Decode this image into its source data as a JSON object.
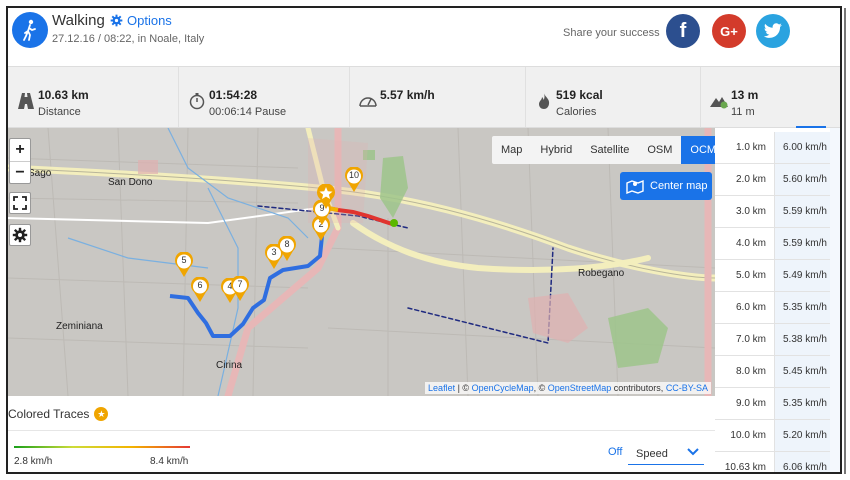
{
  "header": {
    "activity": "Walking",
    "options_label": "Options",
    "meta": "27.12.16 / 08:22, in Noale, Italy",
    "share_text": "Share your success",
    "social": {
      "facebook": "f",
      "googleplus": "G+",
      "twitter": "twitter"
    }
  },
  "stats": [
    {
      "icon": "road-icon",
      "main": "10.63 km",
      "sub": "Distance"
    },
    {
      "icon": "stopwatch-icon",
      "main": "01:54:28",
      "sub": "00:06:14 Pause"
    },
    {
      "icon": "speedometer-icon",
      "main": "5.57 km/h",
      "sub": ""
    },
    {
      "icon": "flame-icon",
      "main": "519 kcal",
      "sub": "Calories"
    },
    {
      "icon": "elevation-icon",
      "main": "13 m",
      "sub": "11 m"
    }
  ],
  "map": {
    "zoom_in": "+",
    "zoom_out": "−",
    "layers": [
      "Map",
      "Hybrid",
      "Satellite",
      "OSM",
      "OCM"
    ],
    "active_layer": "OCM",
    "center_label": "Center map",
    "places": [
      "San Dono",
      "Robegano",
      "Zeminiana",
      "Cirina",
      "Sago"
    ],
    "markers": [
      "2",
      "3",
      "4",
      "5",
      "6",
      "7",
      "8",
      "9",
      "10"
    ],
    "attribution": {
      "leaflet": "Leaflet",
      "sep1": " | © ",
      "ocm": "OpenCycleMap",
      "sep2": ", © ",
      "osm": "OpenStreetMap",
      "contributors": " contributors, ",
      "license": "CC-BY-SA"
    }
  },
  "traces": {
    "title": "Colored Traces",
    "min_label": "2.8 km/h",
    "max_label": "8.4 km/h",
    "off_label": "Off",
    "selected_metric": "Speed"
  },
  "splits": [
    {
      "km": "1.0 km",
      "speed": "6.00 km/h"
    },
    {
      "km": "2.0 km",
      "speed": "5.60 km/h"
    },
    {
      "km": "3.0 km",
      "speed": "5.59 km/h"
    },
    {
      "km": "4.0 km",
      "speed": "5.59 km/h"
    },
    {
      "km": "5.0 km",
      "speed": "5.49 km/h"
    },
    {
      "km": "6.0 km",
      "speed": "5.35 km/h"
    },
    {
      "km": "7.0 km",
      "speed": "5.38 km/h"
    },
    {
      "km": "8.0 km",
      "speed": "5.45 km/h"
    },
    {
      "km": "9.0 km",
      "speed": "5.35 km/h"
    },
    {
      "km": "10.0 km",
      "speed": "5.20 km/h"
    },
    {
      "km": "10.63 km",
      "speed": "6.06 km/h"
    }
  ],
  "colors": {
    "accent": "#1a73e8",
    "route_blue": "#2f6ee0",
    "marker_orange": "#f0a500"
  }
}
